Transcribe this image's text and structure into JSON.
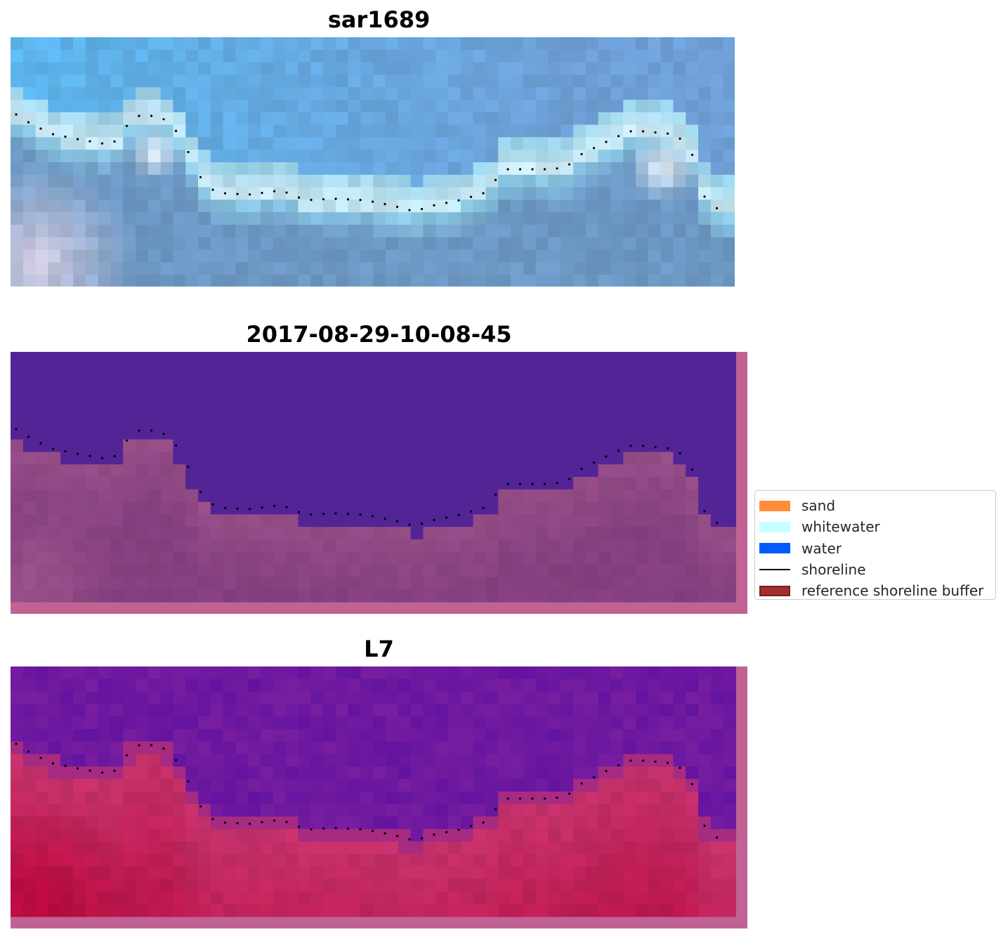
{
  "panels": [
    {
      "id": "panel-1",
      "title": "sar1689",
      "image_style": "rgb",
      "colors": {
        "sky": "#5cb4ec",
        "mid": "#6e9fd6",
        "band": "#8ecde6",
        "surf": "#ffffff",
        "deep": "#6c98c4",
        "sand": "#e4d4e4"
      }
    },
    {
      "id": "panel-2",
      "title": "2017-08-29-10-08-45",
      "image_style": "classified",
      "colors": {
        "water": "#522496",
        "land": "#844080",
        "land_light": "#a4588c",
        "border": "#c06294"
      }
    },
    {
      "id": "panel-3",
      "title": "L7",
      "image_style": "mndwi",
      "colors": {
        "water": "#781ea0",
        "water_dark": "#6212a0",
        "land": "#c4336c",
        "land_deep": "#b8083c",
        "border": "#c06294"
      }
    }
  ],
  "legend": {
    "items": [
      {
        "label": "sand",
        "type": "patch",
        "color": "#ff8c3c"
      },
      {
        "label": "whitewater",
        "type": "patch",
        "color": "#c8ffff"
      },
      {
        "label": "water",
        "type": "patch",
        "color": "#005aff"
      },
      {
        "label": "shoreline",
        "type": "line",
        "color": "#000000"
      },
      {
        "label": "reference shoreline buffer",
        "type": "patch",
        "color": "#a0302c",
        "edge": "#7a1e1e"
      }
    ]
  }
}
